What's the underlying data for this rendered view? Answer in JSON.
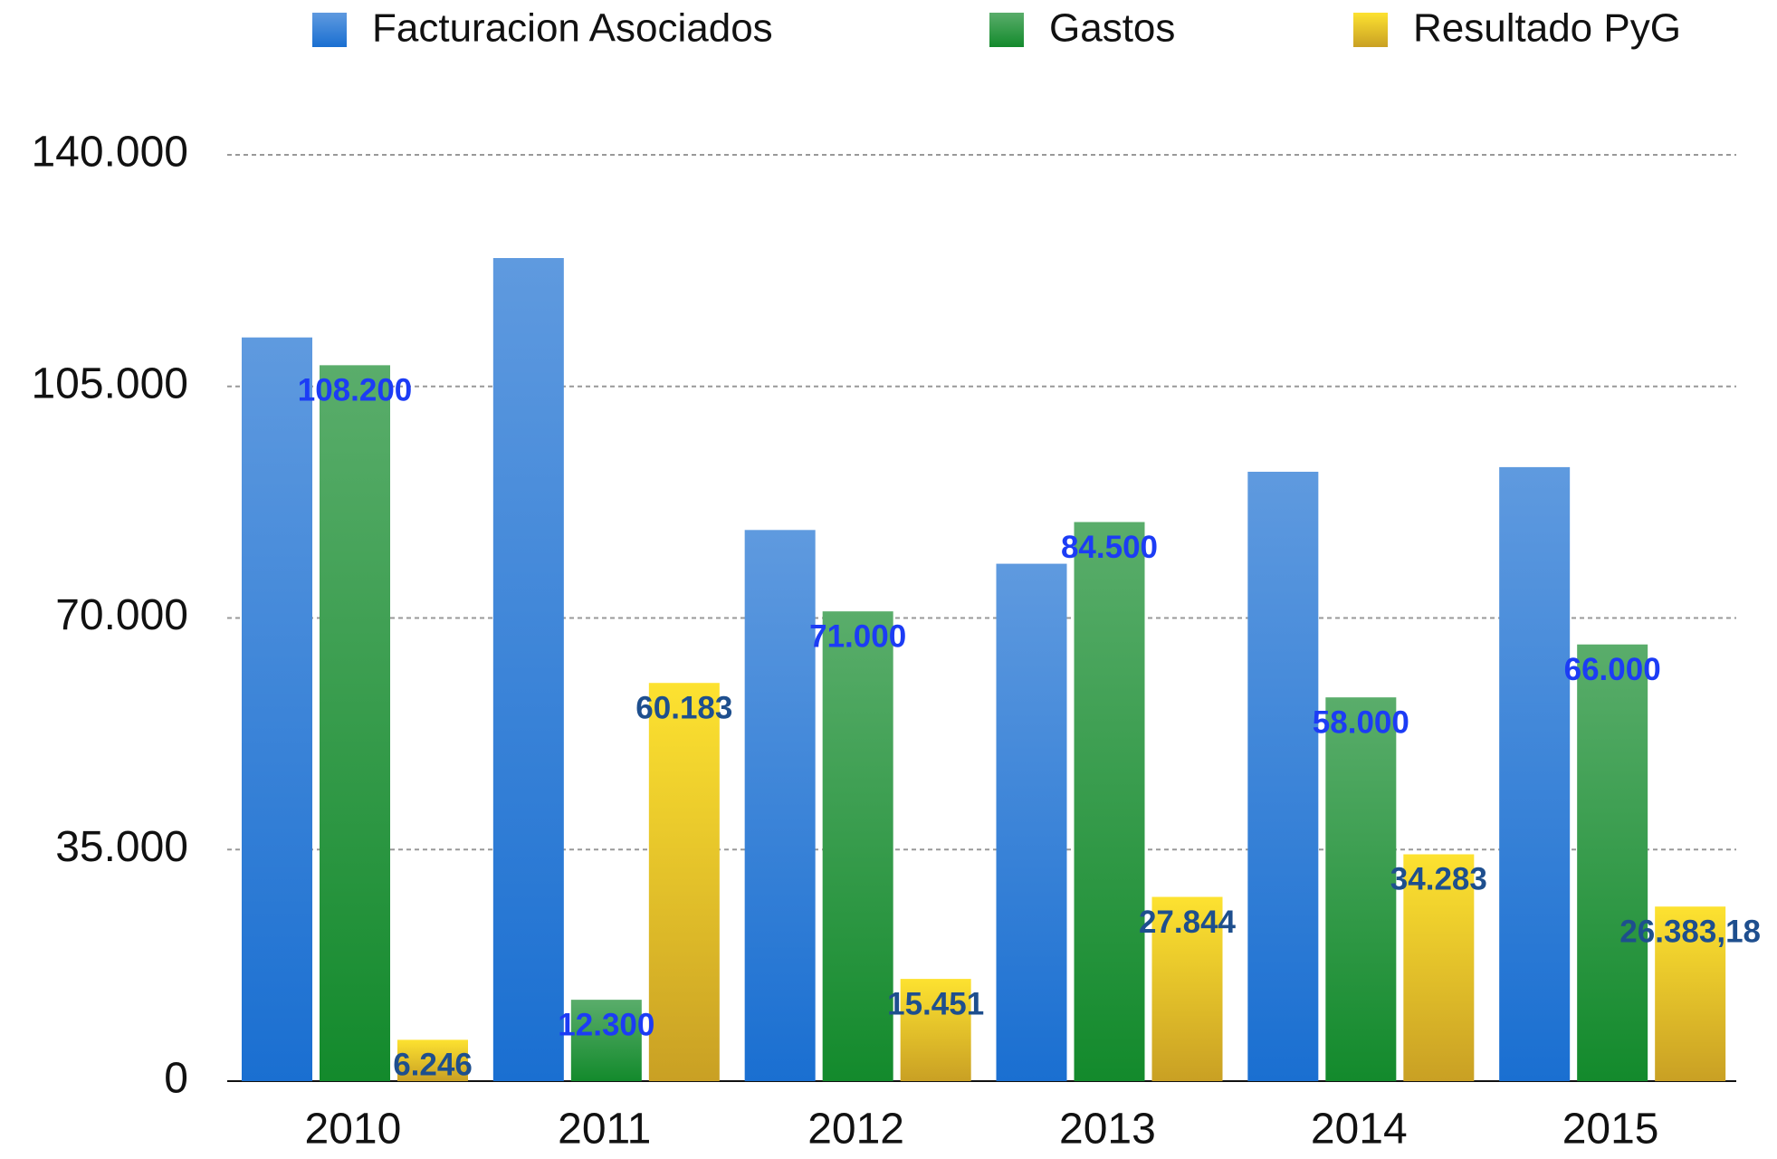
{
  "chart_data": {
    "type": "bar",
    "categories": [
      "2010",
      "2011",
      "2012",
      "2013",
      "2014",
      "2015"
    ],
    "series": [
      {
        "name": "Facturacion Asociados",
        "color": "#1a6fd1",
        "values": [
          112400,
          124400,
          83300,
          78200,
          92100,
          92800
        ]
      },
      {
        "name": "Gastos",
        "color": "#138a2c",
        "values": [
          108200,
          12300,
          71000,
          84500,
          58000,
          66000
        ],
        "value_labels": [
          "108.200",
          "12.300",
          "71.000",
          "84.500",
          "58.000",
          "66.000"
        ],
        "value_label_color": "#1c3cf5"
      },
      {
        "name": "Resultado PyG",
        "color": "#c9a024",
        "values": [
          6246,
          60183,
          15451,
          27844,
          34283,
          26383.18
        ],
        "value_labels": [
          "6.246",
          "60.183",
          "15.451",
          "27.844",
          "34.283",
          "26.383,18"
        ],
        "value_label_color": "#1e4f8e"
      }
    ],
    "ylim": [
      0,
      140000
    ],
    "yticks": [
      0,
      {
        "value": 35000,
        "label": "35.000"
      },
      {
        "value": 70000,
        "label": "70.000"
      },
      {
        "value": 105000,
        "label": "105.000"
      },
      {
        "value": 140000,
        "label": "140.000"
      }
    ],
    "grid": true,
    "legend": "top"
  }
}
